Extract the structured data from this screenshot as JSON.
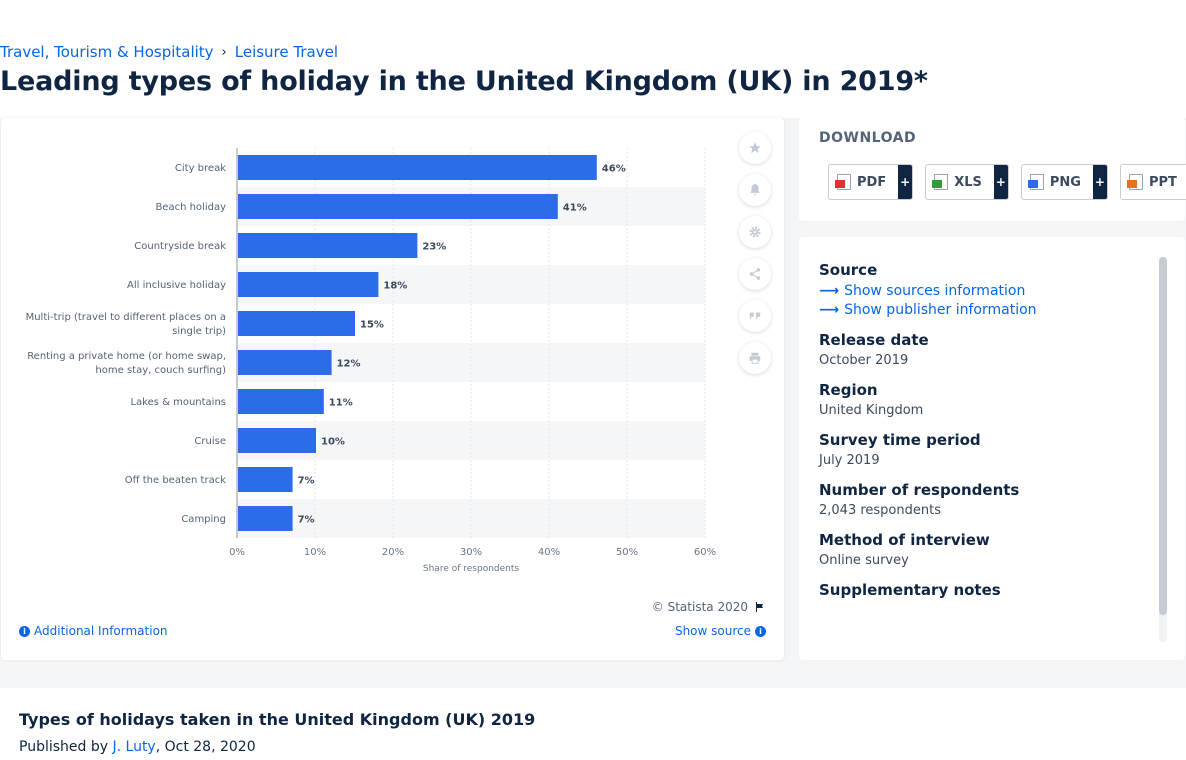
{
  "breadcrumb": {
    "item1": "Travel, Tourism & Hospitality",
    "separator": "›",
    "item2": "Leisure Travel"
  },
  "title": "Leading types of holiday in the United Kingdom (UK) in 2019*",
  "chart_data": {
    "type": "bar",
    "orientation": "horizontal",
    "categories": [
      "City break",
      "Beach holiday",
      "Countryside break",
      "All inclusive holiday",
      "Multi-trip (travel to different places on a single trip)",
      "Renting a private home (or home swap, home stay, couch surfing)",
      "Lakes & mountains",
      "Cruise",
      "Off the beaten track",
      "Camping"
    ],
    "category_lines": [
      [
        "City break"
      ],
      [
        "Beach holiday"
      ],
      [
        "Countryside break"
      ],
      [
        "All inclusive holiday"
      ],
      [
        "Multi-trip (travel to different places on a",
        "single trip)"
      ],
      [
        "Renting a private home (or home swap,",
        "home stay, couch surfing)"
      ],
      [
        "Lakes & mountains"
      ],
      [
        "Cruise"
      ],
      [
        "Off the beaten track"
      ],
      [
        "Camping"
      ]
    ],
    "values": [
      46,
      41,
      23,
      18,
      15,
      12,
      11,
      10,
      7,
      7
    ],
    "value_suffix": "%",
    "xlabel": "Share of respondents",
    "xticks": [
      "0%",
      "10%",
      "20%",
      "30%",
      "40%",
      "50%",
      "60%"
    ],
    "xlim": [
      0,
      60
    ],
    "grid": true,
    "bar_color": "#2d6ce8",
    "title": ""
  },
  "chart_footer": {
    "copyright": "© Statista 2020",
    "additional_info": "Additional Information",
    "show_source": "Show source"
  },
  "tools": [
    "star-icon",
    "bell-icon",
    "gear-icon",
    "share-icon",
    "quote-icon",
    "print-icon"
  ],
  "download": {
    "title": "DOWNLOAD",
    "buttons": [
      {
        "label": "PDF",
        "icon": "pdf-file-icon",
        "color": "#e0312e"
      },
      {
        "label": "XLS",
        "icon": "xls-file-icon",
        "color": "#2e9e3a"
      },
      {
        "label": "PNG",
        "icon": "png-file-icon",
        "color": "#2d6ce8"
      },
      {
        "label": "PPT",
        "icon": "ppt-file-icon",
        "color": "#e8731f"
      }
    ],
    "plus": "+"
  },
  "info": {
    "source_label": "Source",
    "show_sources": "Show sources information",
    "show_publisher": "Show publisher information",
    "release_label": "Release date",
    "release_value": "October 2019",
    "region_label": "Region",
    "region_value": "United Kingdom",
    "survey_label": "Survey time period",
    "survey_value": "July 2019",
    "respondents_label": "Number of respondents",
    "respondents_value": "2,043 respondents",
    "method_label": "Method of interview",
    "method_value": "Online survey",
    "notes_label": "Supplementary notes"
  },
  "bottom": {
    "title": "Types of holidays taken in the United Kingdom (UK) 2019",
    "published_by": "Published by",
    "author": "J. Luty",
    "date": ", Oct 28, 2020"
  }
}
